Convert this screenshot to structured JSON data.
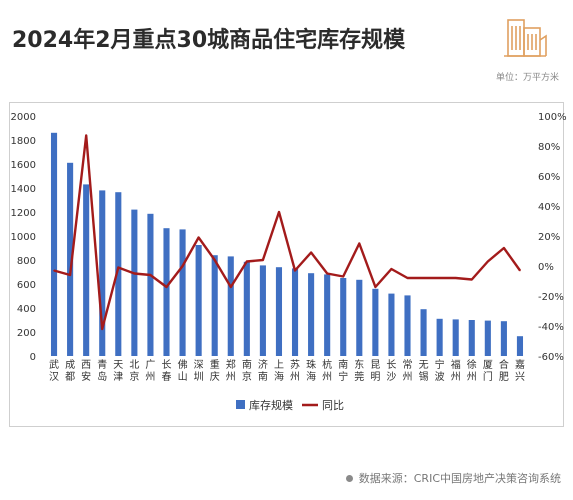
{
  "header": {
    "title": "2024年2月重点30城商品住宅库存规模",
    "unit": "单位：万平方米"
  },
  "footer": {
    "source": "数据来源：CRIC中国房地产决策咨询系统"
  },
  "colors": {
    "bar": "#3f6fc2",
    "line": "#a31b1b",
    "logo": "#e0a060"
  },
  "chart_data": {
    "type": "bar",
    "categories": [
      "武汉",
      "成都",
      "西安",
      "青岛",
      "天津",
      "北京",
      "广州",
      "长春",
      "佛山",
      "深圳",
      "重庆",
      "郑州",
      "南京",
      "济南",
      "上海",
      "苏州",
      "珠海",
      "杭州",
      "南宁",
      "东莞",
      "昆明",
      "长沙",
      "常州",
      "无锡",
      "宁波",
      "福州",
      "徐州",
      "厦门",
      "合肥",
      "嘉兴"
    ],
    "series": [
      {
        "name": "库存规模",
        "type": "bar",
        "axis": "left",
        "values": [
          1860,
          1610,
          1430,
          1380,
          1365,
          1220,
          1185,
          1065,
          1055,
          925,
          840,
          830,
          785,
          755,
          740,
          730,
          690,
          680,
          650,
          635,
          560,
          520,
          505,
          390,
          310,
          305,
          300,
          295,
          290,
          165
        ]
      },
      {
        "name": "同比",
        "type": "line",
        "axis": "right",
        "values": [
          -3,
          -6,
          87,
          -42,
          -1,
          -5,
          -6,
          -14,
          0,
          19,
          4,
          -14,
          3,
          4,
          36,
          -3,
          9,
          -5,
          -7,
          15,
          -14,
          -2,
          -8,
          -8,
          -8,
          -8,
          -9,
          3,
          12,
          -3
        ]
      }
    ],
    "y_left": {
      "min": 0,
      "max": 2000,
      "ticks": [
        "0",
        "200",
        "400",
        "600",
        "800",
        "1000",
        "1200",
        "1400",
        "1600",
        "1800",
        "2000"
      ]
    },
    "y_right": {
      "min": -60,
      "max": 100,
      "ticks": [
        "-60%",
        "-40%",
        "-20%",
        "0%",
        "20%",
        "40%",
        "60%",
        "80%",
        "100%"
      ]
    },
    "legend": {
      "position": "bottom",
      "items": [
        "库存规模",
        "同比"
      ]
    },
    "grid": false
  }
}
